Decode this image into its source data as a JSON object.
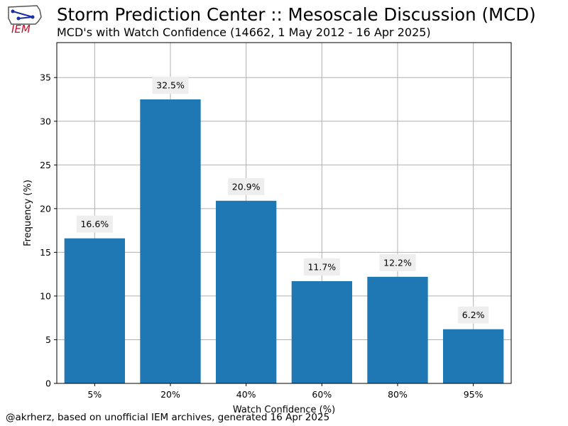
{
  "logo": {
    "text": "IEM",
    "color": "#c8102e"
  },
  "header": {
    "title": "Storm Prediction Center :: Mesoscale Discussion (MCD)",
    "subtitle": "MCD's with Watch Confidence (14662, 1 May 2012 - 16 Apr 2025)"
  },
  "footer": {
    "text": "@akrherz, based on unofficial IEM archives, generated 16 Apr 2025"
  },
  "chart_data": {
    "type": "bar",
    "categories": [
      "5%",
      "20%",
      "40%",
      "60%",
      "80%",
      "95%"
    ],
    "values": [
      16.6,
      32.5,
      20.9,
      11.7,
      12.2,
      6.2
    ],
    "data_labels": [
      "16.6%",
      "32.5%",
      "20.9%",
      "11.7%",
      "12.2%",
      "6.2%"
    ],
    "xlabel": "Watch Confidence (%)",
    "ylabel": "Frequency (%)",
    "ylim": [
      0,
      39
    ],
    "yticks": [
      0,
      5,
      10,
      15,
      20,
      25,
      30,
      35
    ],
    "grid": true,
    "bar_color": "#1f77b4",
    "label_bg_color": "#eeeeee"
  }
}
